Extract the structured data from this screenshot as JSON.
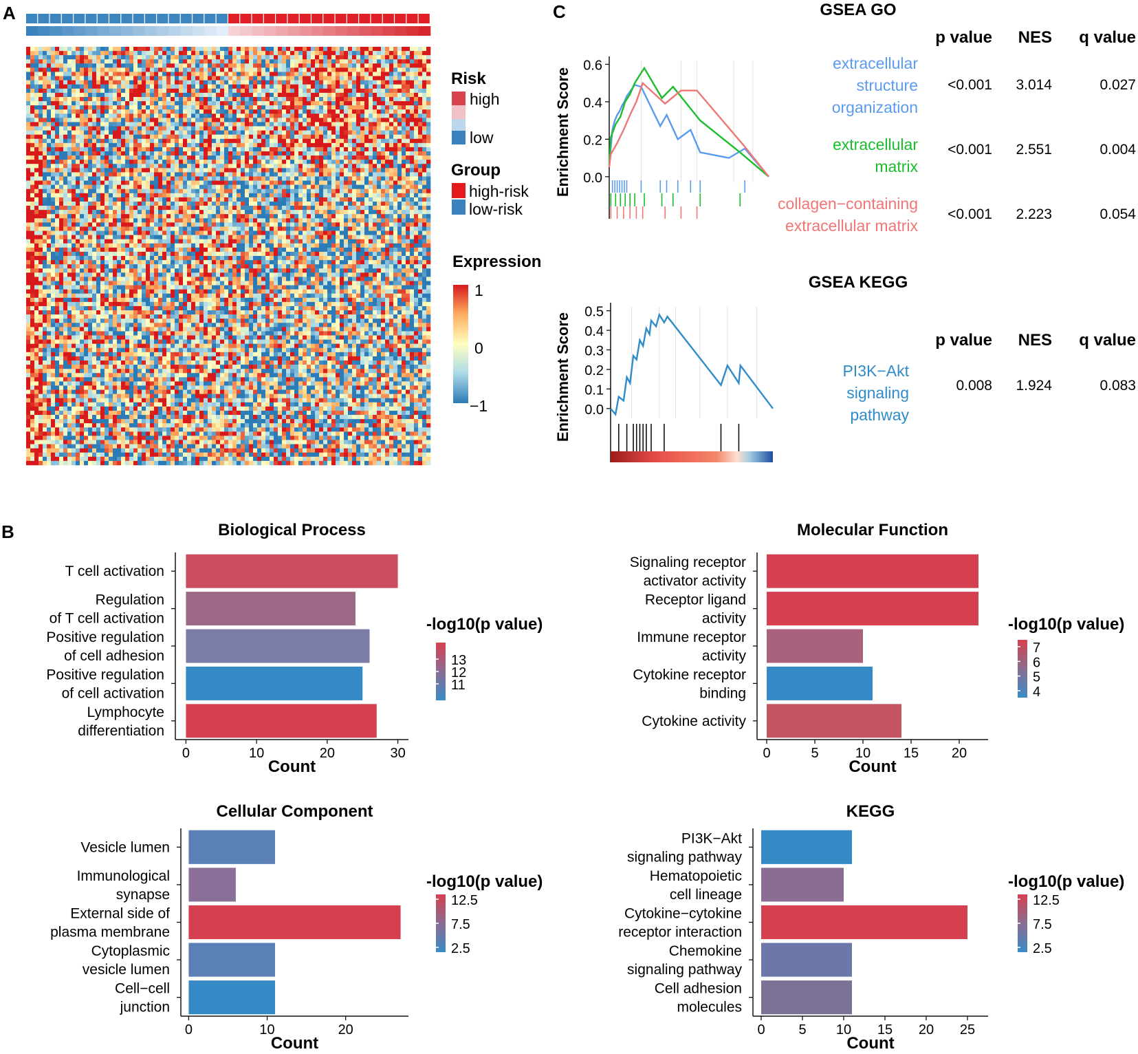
{
  "panels": {
    "a": "A",
    "b": "B",
    "c": "C"
  },
  "heatmap": {
    "risk_legend": {
      "title": "Risk",
      "high": "high",
      "low": "low"
    },
    "group_legend": {
      "title": "Group",
      "high": "high-risk",
      "low": "low-risk"
    },
    "expr_legend": {
      "title": "Expression",
      "ticks": [
        "1",
        "0",
        "−1"
      ]
    },
    "colors": {
      "high": "#d7191c",
      "low": "#2c7bb6",
      "risk_high": "#d6424d",
      "risk_low": "#3a82be"
    }
  },
  "gsea_go": {
    "title": "GSEA GO",
    "ylabel": "Enrichment Score",
    "yticks": [
      "0.6",
      "0.4",
      "0.2",
      "0.0"
    ],
    "headers": {
      "p": "p value",
      "nes": "NES",
      "q": "q value"
    },
    "rows": [
      {
        "lines": [
          "extracellular",
          "structure",
          "organization"
        ],
        "color": "#5b9bef",
        "p": "<0.001",
        "nes": "3.014",
        "q": "0.027"
      },
      {
        "lines": [
          "extracellular",
          "matrix"
        ],
        "color": "#1bbd2d",
        "p": "<0.001",
        "nes": "2.551",
        "q": "0.004"
      },
      {
        "lines": [
          "collagen−containing",
          "extracellular matrix"
        ],
        "color": "#f07676",
        "p": "<0.001",
        "nes": "2.223",
        "q": "0.054"
      }
    ]
  },
  "gsea_kegg": {
    "title": "GSEA KEGG",
    "ylabel": "Enrichment Score",
    "yticks": [
      "0.5",
      "0.4",
      "0.3",
      "0.2",
      "0.1",
      "0.0"
    ],
    "headers": {
      "p": "p value",
      "nes": "NES",
      "q": "q value"
    },
    "rows": [
      {
        "lines": [
          "PI3K−Akt",
          "signaling",
          "pathway"
        ],
        "color": "#2f8bc9",
        "p": "0.008",
        "nes": "1.924",
        "q": "0.083"
      }
    ]
  },
  "chart_data": [
    {
      "type": "line",
      "title": "GSEA GO",
      "ylabel": "Enrichment Score",
      "ylim": [
        -0.03,
        0.62
      ],
      "series": [
        {
          "name": "extracellular structure organization",
          "color": "#5b9bef",
          "hits": [
            0.02,
            0.035,
            0.05,
            0.065,
            0.08,
            0.095,
            0.11,
            0.2,
            0.32,
            0.36,
            0.43,
            0.51,
            0.57,
            0.85
          ],
          "values": [
            [
              0,
              0.06
            ],
            [
              0.02,
              0.25
            ],
            [
              0.035,
              0.3
            ],
            [
              0.05,
              0.33
            ],
            [
              0.065,
              0.35
            ],
            [
              0.08,
              0.38
            ],
            [
              0.095,
              0.4
            ],
            [
              0.11,
              0.43
            ],
            [
              0.16,
              0.49
            ],
            [
              0.2,
              0.48
            ],
            [
              0.32,
              0.27
            ],
            [
              0.36,
              0.33
            ],
            [
              0.43,
              0.2
            ],
            [
              0.51,
              0.25
            ],
            [
              0.57,
              0.13
            ],
            [
              0.75,
              0.1
            ],
            [
              0.85,
              0.15
            ],
            [
              1,
              0.0
            ]
          ]
        },
        {
          "name": "extracellular matrix",
          "color": "#1bbd2d",
          "hits": [
            0.01,
            0.04,
            0.07,
            0.1,
            0.13,
            0.16,
            0.22,
            0.33,
            0.4,
            0.57,
            0.82
          ],
          "values": [
            [
              0,
              0.06
            ],
            [
              0.01,
              0.21
            ],
            [
              0.04,
              0.28
            ],
            [
              0.07,
              0.32
            ],
            [
              0.1,
              0.4
            ],
            [
              0.13,
              0.44
            ],
            [
              0.16,
              0.5
            ],
            [
              0.22,
              0.58
            ],
            [
              0.33,
              0.42
            ],
            [
              0.4,
              0.48
            ],
            [
              0.57,
              0.3
            ],
            [
              0.82,
              0.13
            ],
            [
              1,
              0.0
            ]
          ]
        },
        {
          "name": "collagen−containing extracellular matrix",
          "color": "#f07676",
          "hits": [
            0.01,
            0.05,
            0.09,
            0.13,
            0.17,
            0.21,
            0.35,
            0.45,
            0.55
          ],
          "values": [
            [
              0,
              0.05
            ],
            [
              0.01,
              0.12
            ],
            [
              0.05,
              0.18
            ],
            [
              0.09,
              0.25
            ],
            [
              0.13,
              0.33
            ],
            [
              0.17,
              0.4
            ],
            [
              0.21,
              0.5
            ],
            [
              0.35,
              0.39
            ],
            [
              0.45,
              0.46
            ],
            [
              0.55,
              0.46
            ],
            [
              0.85,
              0.16
            ],
            [
              1,
              0.0
            ]
          ]
        }
      ]
    },
    {
      "type": "line",
      "title": "GSEA KEGG",
      "ylabel": "Enrichment Score",
      "ylim": [
        -0.05,
        0.52
      ],
      "series": [
        {
          "name": "PI3K−Akt signaling pathway",
          "color": "#2f8bc9",
          "hits": [
            0.05,
            0.1,
            0.14,
            0.16,
            0.18,
            0.2,
            0.22,
            0.25,
            0.33,
            0.68,
            0.79
          ],
          "values": [
            [
              0,
              0.0
            ],
            [
              0.03,
              -0.03
            ],
            [
              0.05,
              0.06
            ],
            [
              0.08,
              0.04
            ],
            [
              0.1,
              0.16
            ],
            [
              0.12,
              0.13
            ],
            [
              0.14,
              0.27
            ],
            [
              0.16,
              0.25
            ],
            [
              0.18,
              0.35
            ],
            [
              0.2,
              0.32
            ],
            [
              0.22,
              0.41
            ],
            [
              0.24,
              0.38
            ],
            [
              0.25,
              0.45
            ],
            [
              0.28,
              0.42
            ],
            [
              0.3,
              0.48
            ],
            [
              0.33,
              0.44
            ],
            [
              0.35,
              0.47
            ],
            [
              0.68,
              0.12
            ],
            [
              0.72,
              0.22
            ],
            [
              0.79,
              0.13
            ],
            [
              0.8,
              0.22
            ],
            [
              1,
              0.0
            ]
          ]
        }
      ]
    },
    {
      "type": "bar",
      "title": "Biological Process",
      "xlabel": "Count",
      "xticks": [
        0,
        10,
        20,
        30
      ],
      "xlim": [
        -1.5,
        31.5
      ],
      "categories": [
        [
          "T cell activation"
        ],
        [
          "Regulation",
          "of T cell activation"
        ],
        [
          "Positive regulation",
          "of cell adhesion"
        ],
        [
          "Positive regulation",
          "of cell activation"
        ],
        [
          "Lymphocyte",
          "differentiation"
        ]
      ],
      "values": [
        30,
        24,
        26,
        25,
        27
      ],
      "colors": [
        "#cc4d5f",
        "#9c6a86",
        "#7c7ea8",
        "#3589c4",
        "#d4404f"
      ],
      "legend": {
        "title": "-log10(p value)",
        "ticks": [
          "13",
          "12",
          "11"
        ]
      }
    },
    {
      "type": "bar",
      "title": "Molecular Function",
      "xlabel": "Count",
      "xticks": [
        0,
        5,
        10,
        15,
        20
      ],
      "xlim": [
        -1,
        23
      ],
      "categories": [
        [
          "Signaling receptor",
          "activator activity"
        ],
        [
          "Receptor ligand",
          "activity"
        ],
        [
          "Immune receptor",
          "activity"
        ],
        [
          "Cytokine receptor",
          "binding"
        ],
        [
          "Cytokine activity"
        ]
      ],
      "values": [
        22,
        22,
        10,
        11,
        14
      ],
      "colors": [
        "#d4404f",
        "#d4404f",
        "#a8627d",
        "#3589c4",
        "#c4545f"
      ],
      "legend": {
        "title": "-log10(p value)",
        "ticks": [
          "7",
          "6",
          "5",
          "4"
        ]
      }
    },
    {
      "type": "bar",
      "title": "Cellular Component",
      "xlabel": "Count",
      "xticks": [
        0,
        10,
        20
      ],
      "xlim": [
        -1,
        28
      ],
      "categories": [
        [
          "Vesicle lumen"
        ],
        [
          "Immunological",
          "synapse"
        ],
        [
          "External side of",
          "plasma membrane"
        ],
        [
          "Cytoplasmic",
          "vesicle lumen"
        ],
        [
          "Cell−cell",
          "junction"
        ]
      ],
      "values": [
        11,
        6,
        27,
        11,
        11
      ],
      "colors": [
        "#5a80b5",
        "#8a6f98",
        "#d4404f",
        "#5a80b5",
        "#3589c4"
      ],
      "legend": {
        "title": "-log10(p value)",
        "ticks": [
          "12.5",
          "7.5",
          "2.5"
        ]
      }
    },
    {
      "type": "bar",
      "title": "KEGG",
      "xlabel": "Count",
      "xticks": [
        0,
        5,
        10,
        15,
        20,
        25
      ],
      "xlim": [
        -1,
        27.5
      ],
      "categories": [
        [
          "PI3K−Akt",
          "signaling pathway"
        ],
        [
          "Hematopoietic",
          "cell lineage"
        ],
        [
          "Cytokine−cytokine",
          "receptor interaction"
        ],
        [
          "Chemokine",
          "signaling pathway"
        ],
        [
          "Cell adhesion",
          "molecules"
        ]
      ],
      "values": [
        11,
        10,
        25,
        11,
        11
      ],
      "colors": [
        "#3589c4",
        "#8a6d92",
        "#d4404f",
        "#6b78a8",
        "#7c7296"
      ],
      "legend": {
        "title": "-log10(p value)",
        "ticks": [
          "12.5",
          "7.5",
          "2.5"
        ]
      }
    }
  ]
}
